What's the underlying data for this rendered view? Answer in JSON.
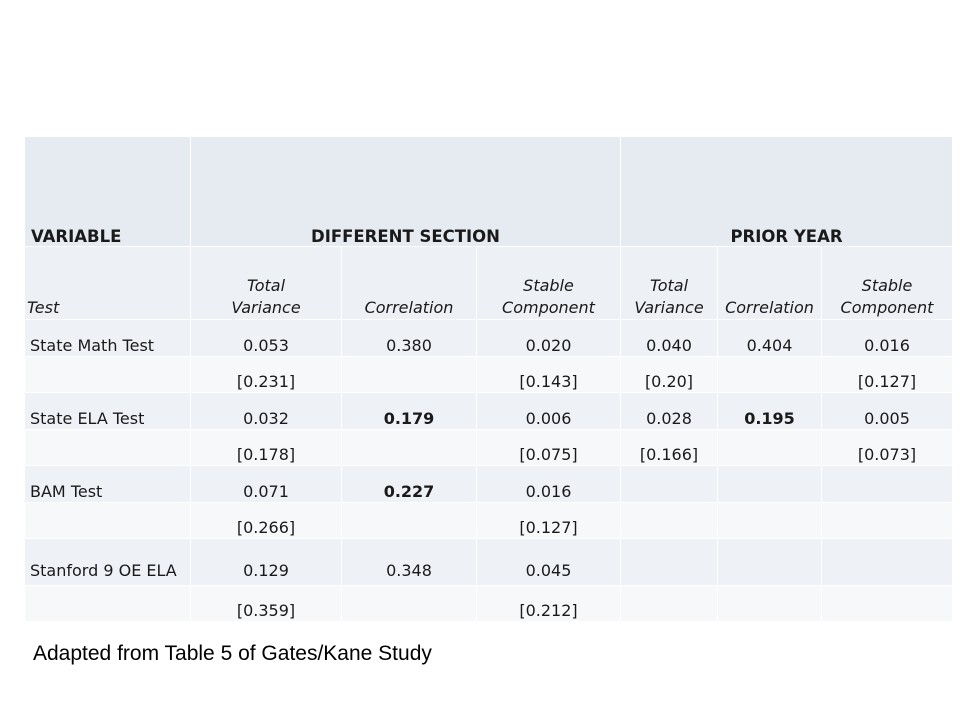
{
  "table": {
    "headers": {
      "variable": "VARIABLE",
      "different_section": "DIFFERENT SECTION",
      "prior_year": "PRIOR YEAR"
    },
    "subheaders": {
      "test": "Test",
      "total_variance_1": "Total",
      "total_variance_2": "Variance",
      "correlation": "Correlation",
      "stable_component_1": "Stable",
      "stable_component_2": "Component"
    },
    "rows": [
      {
        "label": "State Math Test",
        "values": [
          "0.053",
          "0.380",
          "0.020",
          "0.040",
          "0.404",
          "0.016"
        ],
        "brackets": [
          "[0.231]",
          "",
          "[0.143]",
          "[0.20]",
          "",
          "[0.127]"
        ]
      },
      {
        "label": "State ELA Test",
        "values": [
          "0.032",
          "0.179",
          "0.006",
          "0.028",
          "0.195",
          "0.005"
        ],
        "brackets": [
          "[0.178]",
          "",
          "[0.075]",
          "[0.166]",
          "",
          "[0.073]"
        ]
      },
      {
        "label": "BAM Test",
        "values": [
          "0.071",
          "0.227",
          "0.016",
          "",
          "",
          ""
        ],
        "brackets": [
          "[0.266]",
          "",
          "[0.127]",
          "",
          "",
          ""
        ]
      },
      {
        "label": "Stanford 9 OE ELA",
        "values": [
          "0.129",
          "0.348",
          "0.045",
          "",
          "",
          ""
        ],
        "brackets": [
          "[0.359]",
          "",
          "[0.212]",
          "",
          "",
          ""
        ]
      }
    ]
  },
  "caption": "Adapted from Table 5 of Gates/Kane Study"
}
